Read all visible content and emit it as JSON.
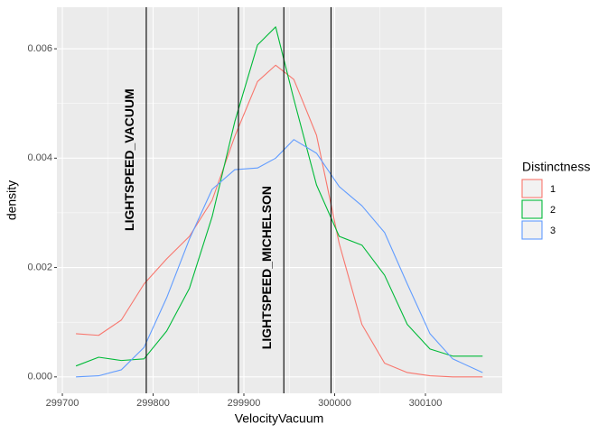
{
  "chart_data": {
    "type": "line",
    "x_label": "VelocityVacuum",
    "y_label": "density",
    "legend_title": "Distinctness",
    "legend_position": "right",
    "grid": true,
    "xlim": [
      299694,
      300184.6
    ],
    "ylim": [
      -0.0003,
      0.00676
    ],
    "xticks": [
      299700,
      299800,
      299900,
      300000,
      300100
    ],
    "yticks": [
      {
        "value": 0,
        "label": "0.000"
      },
      {
        "value": 0.002,
        "label": "0.002"
      },
      {
        "value": 0.004,
        "label": "0.004"
      },
      {
        "value": 0.006,
        "label": "0.006"
      }
    ],
    "x": [
      299715,
      299740,
      299765,
      299790,
      299815,
      299840,
      299865,
      299890,
      299915,
      299935,
      299955,
      299980,
      300005,
      300030,
      300055,
      300080,
      300105,
      300130,
      300163
    ],
    "series": [
      {
        "name": "1",
        "color": "#F8766D",
        "values": [
          0.00079,
          0.00076,
          0.00104,
          0.0017,
          0.00216,
          0.00257,
          0.00323,
          0.0044,
          0.0054,
          0.0057,
          0.00544,
          0.00442,
          0.00244,
          0.00096,
          0.00025,
          8e-05,
          2e-05,
          0,
          0
        ]
      },
      {
        "name": "2",
        "color": "#00BA38",
        "values": [
          0.0002,
          0.00036,
          0.0003,
          0.00033,
          0.00084,
          0.00162,
          0.00293,
          0.00467,
          0.00607,
          0.0064,
          0.00508,
          0.00351,
          0.00257,
          0.00241,
          0.00186,
          0.00096,
          0.00051,
          0.00038,
          0.00038
        ]
      },
      {
        "name": "3",
        "color": "#619CFF",
        "values": [
          0,
          2e-05,
          0.00013,
          0.00054,
          0.00145,
          0.00252,
          0.00343,
          0.00379,
          0.00382,
          0.004,
          0.00434,
          0.00409,
          0.00348,
          0.00313,
          0.00264,
          0.0017,
          0.00079,
          0.00033,
          8e-05
        ]
      }
    ],
    "vlines": [
      299792.458,
      299894,
      299944,
      299996
    ],
    "annotations": [
      {
        "text": "LIGHTSPEED_VACUUM",
        "x": 299775,
        "y": 0.00397
      },
      {
        "text": "LIGHTSPEED_MICHELSON",
        "x": 299926,
        "y": 0.002
      }
    ]
  }
}
